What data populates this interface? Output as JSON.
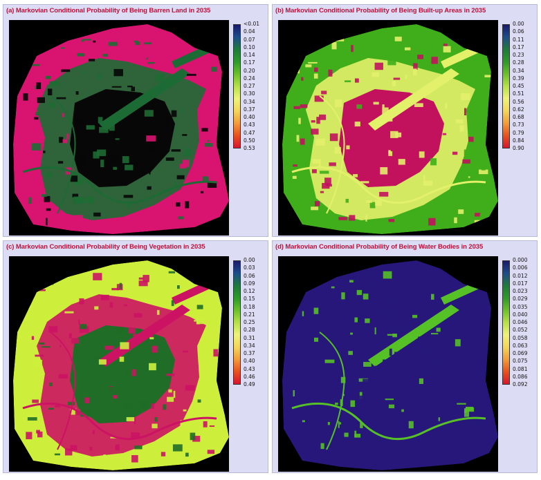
{
  "panels": [
    {
      "title": "(a) Markovian Conditional Probability of Being Barren Land in 2035",
      "legend_ticks": [
        "<0.01",
        "0.04",
        "0.07",
        "0.10",
        "0.14",
        "0.17",
        "0.20",
        "0.24",
        "0.27",
        "0.30",
        "0.34",
        "0.37",
        "0.40",
        "0.43",
        "0.47",
        "0.50",
        "0.53"
      ],
      "fill_colors": {
        "outer": "#d81470",
        "core": "#070707",
        "mid": "#1d6b34"
      }
    },
    {
      "title": "(b) Markovian Conditional Probability of Being Built-up Areas in 2035",
      "legend_ticks": [
        "0.00",
        "0.06",
        "0.11",
        "0.17",
        "0.23",
        "0.28",
        "0.34",
        "0.39",
        "0.45",
        "0.51",
        "0.56",
        "0.62",
        "0.68",
        "0.73",
        "0.79",
        "0.84",
        "0.90"
      ],
      "fill_colors": {
        "outer": "#3fae1a",
        "core": "#c2125e",
        "mid": "#e3f06a"
      }
    },
    {
      "title": "(c) Markovian Conditional Probability of Being Vegetation in 2035",
      "legend_ticks": [
        "0.00",
        "0.03",
        "0.06",
        "0.09",
        "0.12",
        "0.15",
        "0.18",
        "0.21",
        "0.25",
        "0.28",
        "0.31",
        "0.34",
        "0.37",
        "0.40",
        "0.43",
        "0.46",
        "0.49"
      ],
      "fill_colors": {
        "outer": "#cdef3c",
        "core": "#1f6d26",
        "mid": "#cc1363"
      }
    },
    {
      "title": "(d) Markovian Conditional Probability of Being Water Bodies in 2035",
      "legend_ticks": [
        "0.000",
        "0.006",
        "0.012",
        "0.017",
        "0.023",
        "0.029",
        "0.035",
        "0.040",
        "0.046",
        "0.052",
        "0.058",
        "0.063",
        "0.069",
        "0.075",
        "0.081",
        "0.086",
        "0.092"
      ],
      "fill_colors": {
        "outer": "#27177a",
        "core": "#27177a",
        "mid": "#56c027"
      }
    }
  ],
  "legend_gradient": [
    "#1a1a6e",
    "#1b4d8c",
    "#1f7a3c",
    "#2e9a2a",
    "#6cc02c",
    "#b7e04a",
    "#eef27a",
    "#f3d65a",
    "#f29c3a",
    "#e8521e",
    "#d8142e"
  ]
}
